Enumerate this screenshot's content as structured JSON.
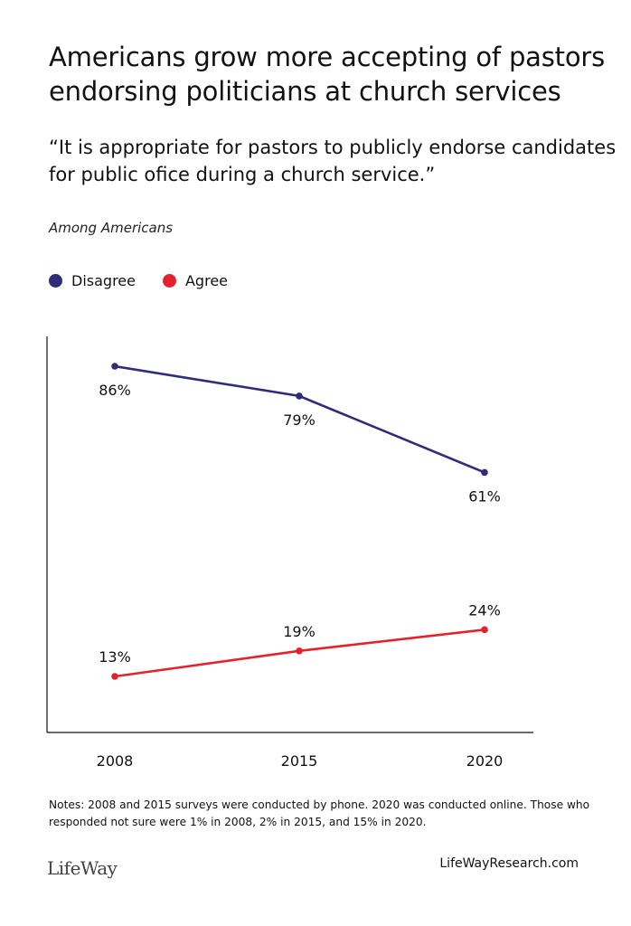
{
  "header": {
    "title": "Americans grow more accepting of pastors endorsing politicians at church services",
    "quote": "“It is appropriate for pastors to publicly endorse candidates for public ofice during a church service.”",
    "subtitle": "Among Americans"
  },
  "legend": {
    "items": [
      {
        "label": "Disagree",
        "color": "#2e2d7a"
      },
      {
        "label": "Agree",
        "color": "#e3232b"
      }
    ]
  },
  "chart_data": {
    "type": "line",
    "x": [
      "2008",
      "2015",
      "2020"
    ],
    "series": [
      {
        "name": "Disagree",
        "values": [
          86,
          79,
          61
        ],
        "labels": [
          "86%",
          "79%",
          "61%"
        ],
        "color": "#2e2d7a"
      },
      {
        "name": "Agree",
        "values": [
          13,
          19,
          24
        ],
        "labels": [
          "13%",
          "19%",
          "24%"
        ],
        "color": "#e3232b"
      }
    ],
    "ylim": [
      0,
      100
    ],
    "grid": false,
    "legend": "top-left"
  },
  "footer": {
    "notes": "Notes: 2008 and 2015 surveys were conducted by phone. 2020 was conducted online. Those who responded not sure were 1% in 2008, 2% in 2015, and 15% in 2020.",
    "logo_text": "LifeWay",
    "site": "LifeWayResearch.com"
  }
}
